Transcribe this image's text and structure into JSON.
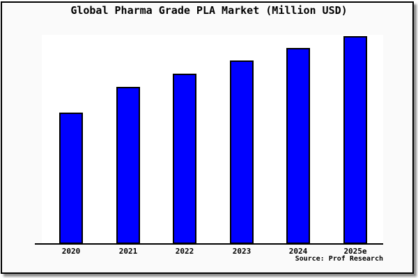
{
  "page": {
    "background_color": "#ffffff",
    "figure_background_color": "#fafafa",
    "frame_border_color": "#000000",
    "frame_shadow_color": "#737373"
  },
  "chart_data": {
    "type": "bar",
    "title": "Global Pharma Grade PLA Market (Million USD)",
    "categories": [
      "2020",
      "2021",
      "2022",
      "2023",
      "2024",
      "2025e"
    ],
    "values": [
      63.2,
      75.6,
      81.9,
      88.3,
      94.3,
      100
    ],
    "value_units": "relative index; chart displays no y-axis scale, values estimated as percent of the 2025e bar height",
    "xlabel": "",
    "ylabel": "",
    "ylim": [
      0,
      101
    ],
    "grid": false,
    "legend": "none",
    "plot_background_color": "#ffffff",
    "bar_fill_color": "#0000ff",
    "bar_border_color": "#000000",
    "axis_line_color": "#000000",
    "source_note": "Source: Prof Research"
  }
}
